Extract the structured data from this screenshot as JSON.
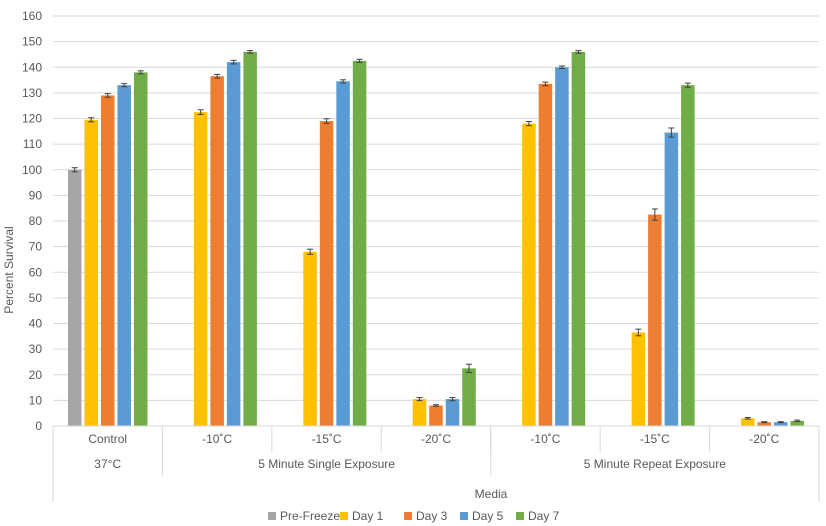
{
  "chart_data": {
    "type": "bar",
    "ylabel": "Percent Survival",
    "xlabel": "Media",
    "ylim": [
      0,
      160
    ],
    "ytick_step": 10,
    "grid": true,
    "legend_position": "bottom",
    "categories": [
      "Control",
      "-10˚C",
      "-15˚C",
      "-20˚C",
      "-10˚C",
      "-15˚C",
      "-20˚C"
    ],
    "groups": [
      {
        "label": "37°C",
        "span": 1
      },
      {
        "label": "5 Minute Single Exposure",
        "span": 3
      },
      {
        "label": "5 Minute Repeat Exposure",
        "span": 3
      }
    ],
    "series": [
      {
        "name": "Pre-Freeze",
        "color": "#A5A5A5",
        "values": [
          100,
          null,
          null,
          null,
          null,
          null,
          null
        ],
        "errors": [
          0.8,
          null,
          null,
          null,
          null,
          null,
          null
        ]
      },
      {
        "name": "Day 1",
        "color": "#FFC000",
        "values": [
          119.5,
          122.5,
          68,
          10.5,
          118,
          36.5,
          3
        ],
        "errors": [
          0.8,
          0.9,
          1.0,
          0.6,
          0.8,
          1.3,
          0.3
        ]
      },
      {
        "name": "Day 3",
        "color": "#ED7D31",
        "values": [
          129,
          136.5,
          119,
          8,
          133.5,
          82.5,
          1.5
        ],
        "errors": [
          0.7,
          0.7,
          0.9,
          0.3,
          0.7,
          2.2,
          0.2
        ]
      },
      {
        "name": "Day 5",
        "color": "#5B9BD5",
        "values": [
          133,
          142,
          134.5,
          10.5,
          140,
          114.5,
          1.5
        ],
        "errors": [
          0.6,
          0.7,
          0.6,
          0.6,
          0.5,
          1.8,
          0.2
        ]
      },
      {
        "name": "Day 7",
        "color": "#70AD47",
        "values": [
          138,
          146,
          142.5,
          22.5,
          146,
          133,
          2
        ],
        "errors": [
          0.6,
          0.5,
          0.6,
          1.6,
          0.5,
          0.8,
          0.3
        ]
      }
    ]
  }
}
